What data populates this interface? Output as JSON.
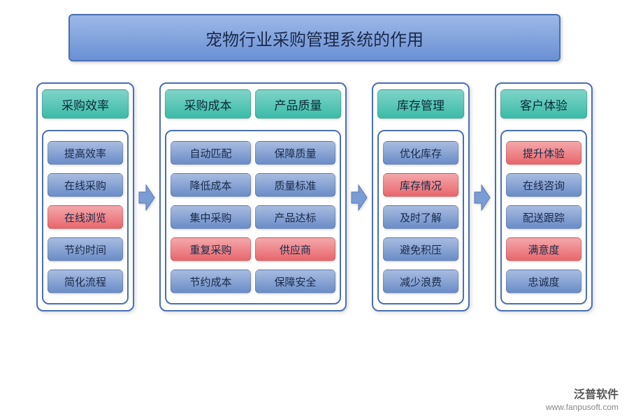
{
  "title": "宠物行业采购管理系统的作用",
  "title_gradient": {
    "top": "#9db8e8",
    "bottom": "#6a91d4"
  },
  "header_gradient": {
    "top": "#7fd4c8",
    "bottom": "#3bbba8"
  },
  "item_blue_gradient": {
    "top": "#a8bce0",
    "bottom": "#6a8cc8"
  },
  "item_red_gradient": {
    "top": "#f4a8ab",
    "bottom": "#e8666b"
  },
  "arrow_gradient": {
    "top": "#c0d0ec",
    "bottom": "#7a9cd4"
  },
  "border_color": "#4a6fb5",
  "columns": [
    {
      "type": "single",
      "headers": [
        "采购效率"
      ],
      "lists": [
        [
          {
            "label": "提高效率",
            "color": "blue"
          },
          {
            "label": "在线采购",
            "color": "blue"
          },
          {
            "label": "在线浏览",
            "color": "red"
          },
          {
            "label": "节约时间",
            "color": "blue"
          },
          {
            "label": "简化流程",
            "color": "blue"
          }
        ]
      ]
    },
    {
      "type": "double",
      "headers": [
        "采购成本",
        "产品质量"
      ],
      "lists": [
        [
          {
            "label": "自动匹配",
            "color": "blue"
          },
          {
            "label": "降低成本",
            "color": "blue"
          },
          {
            "label": "集中采购",
            "color": "blue"
          },
          {
            "label": "重复采购",
            "color": "red"
          },
          {
            "label": "节约成本",
            "color": "blue"
          }
        ],
        [
          {
            "label": "保障质量",
            "color": "blue"
          },
          {
            "label": "质量标准",
            "color": "blue"
          },
          {
            "label": "产品达标",
            "color": "blue"
          },
          {
            "label": "供应商",
            "color": "red"
          },
          {
            "label": "保障安全",
            "color": "blue"
          }
        ]
      ]
    },
    {
      "type": "single",
      "headers": [
        "库存管理"
      ],
      "lists": [
        [
          {
            "label": "优化库存",
            "color": "blue"
          },
          {
            "label": "库存情况",
            "color": "red"
          },
          {
            "label": "及时了解",
            "color": "blue"
          },
          {
            "label": "避免积压",
            "color": "blue"
          },
          {
            "label": "减少浪费",
            "color": "blue"
          }
        ]
      ]
    },
    {
      "type": "single",
      "headers": [
        "客户体验"
      ],
      "lists": [
        [
          {
            "label": "提升体验",
            "color": "red"
          },
          {
            "label": "在线咨询",
            "color": "blue"
          },
          {
            "label": "配送跟踪",
            "color": "blue"
          },
          {
            "label": "满意度",
            "color": "red"
          },
          {
            "label": "忠诚度",
            "color": "blue"
          }
        ]
      ]
    }
  ],
  "watermark": {
    "brand": "泛普软件",
    "url": "www.fanpusoft.com"
  }
}
